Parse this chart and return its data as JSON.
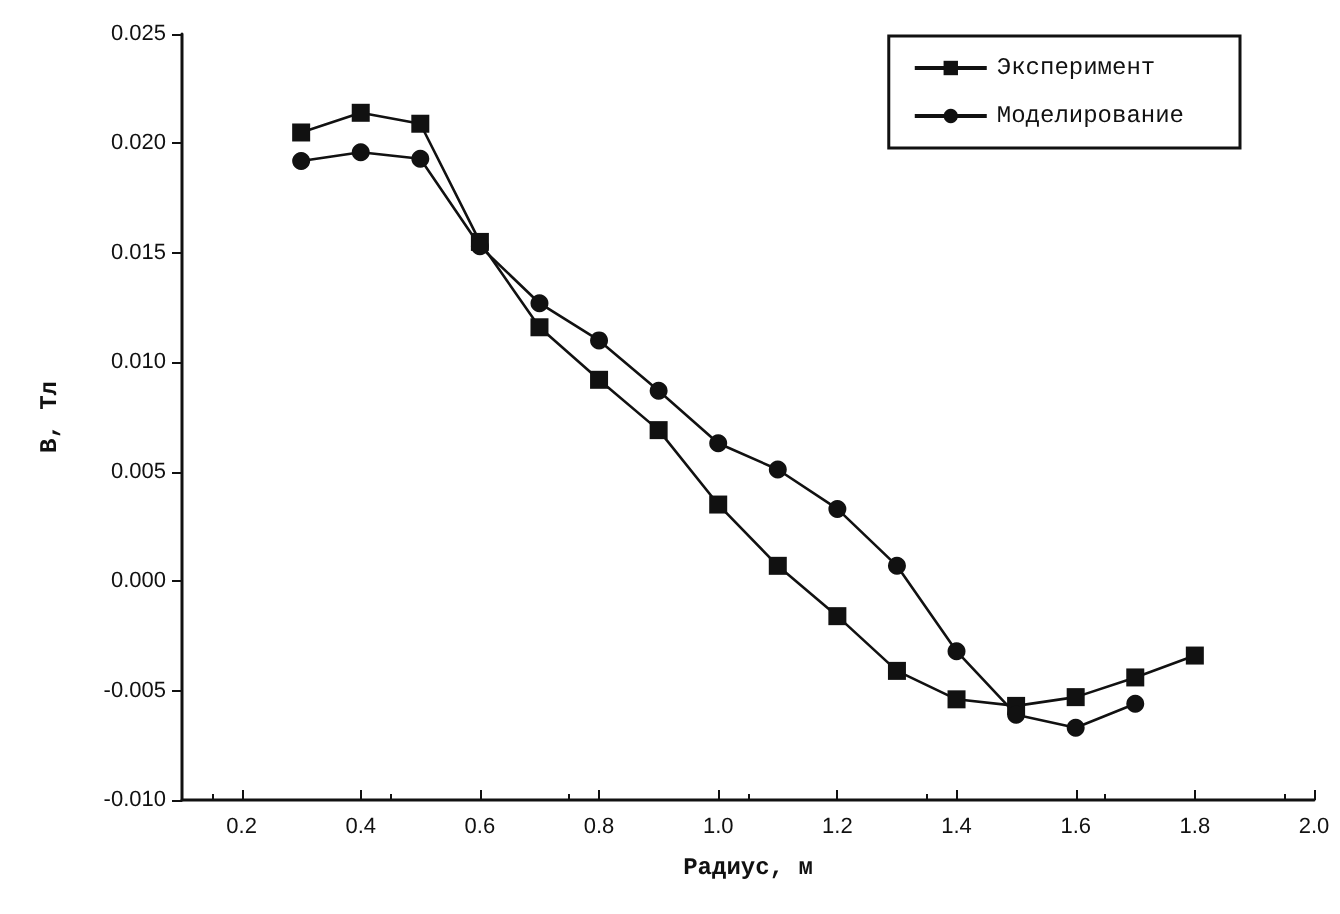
{
  "chart_data": {
    "type": "line",
    "xlabel": "Радиус, м",
    "ylabel": "B, Тл",
    "xlim": [
      0.1,
      2.0
    ],
    "xticks": [
      {
        "value": 0.2,
        "label": "0.2"
      },
      {
        "value": 0.4,
        "label": "0.4"
      },
      {
        "value": 0.6,
        "label": "0.6"
      },
      {
        "value": 0.8,
        "label": "0.8"
      },
      {
        "value": 1,
        "label": "1.0"
      },
      {
        "value": 1.2,
        "label": "1.2"
      },
      {
        "value": 1.4,
        "label": "1.4"
      },
      {
        "value": 1.6,
        "label": "1.6"
      },
      {
        "value": 1.8,
        "label": "1.8"
      },
      {
        "value": 2,
        "label": "2.0"
      }
    ],
    "ylim": [
      -0.01,
      0.025
    ],
    "yticks": [
      {
        "value": -0.01,
        "label": "-0.010"
      },
      {
        "value": -0.005,
        "label": "-0.005"
      },
      {
        "value": 0,
        "label": "0.000"
      },
      {
        "value": 0.005,
        "label": "0.005"
      },
      {
        "value": 0.01,
        "label": "0.010"
      },
      {
        "value": 0.015,
        "label": "0.015"
      },
      {
        "value": 0.02,
        "label": "0.020"
      },
      {
        "value": 0.025,
        "label": "0.025"
      }
    ],
    "grid": false,
    "legend": "top right",
    "line_style": "solid",
    "series": [
      {
        "name": "Эксперимент",
        "color": "#111111",
        "marker": "square",
        "x": [
          0.3,
          0.4,
          0.5,
          0.6,
          0.7,
          0.8,
          0.9,
          1.0,
          1.1,
          1.2,
          1.3,
          1.4,
          1.5,
          1.6,
          1.7,
          1.8
        ],
        "values": [
          0.0205,
          0.0214,
          0.0209,
          0.0155,
          0.0116,
          0.0092,
          0.0069,
          0.0035,
          0.0007,
          -0.0016,
          -0.0041,
          -0.0054,
          -0.0057,
          -0.0053,
          -0.0044,
          -0.0034
        ]
      },
      {
        "name": "Моделирование",
        "color": "#111111",
        "marker": "circle",
        "x": [
          0.3,
          0.4,
          0.5,
          0.6,
          0.7,
          0.8,
          0.9,
          1.0,
          1.1,
          1.2,
          1.3,
          1.4,
          1.5,
          1.6,
          1.7
        ],
        "values": [
          0.0192,
          0.0196,
          0.0193,
          0.0153,
          0.0127,
          0.011,
          0.0087,
          0.0063,
          0.0051,
          0.0033,
          0.0007,
          -0.0032,
          -0.0061,
          -0.0067,
          -0.0056
        ]
      }
    ]
  }
}
